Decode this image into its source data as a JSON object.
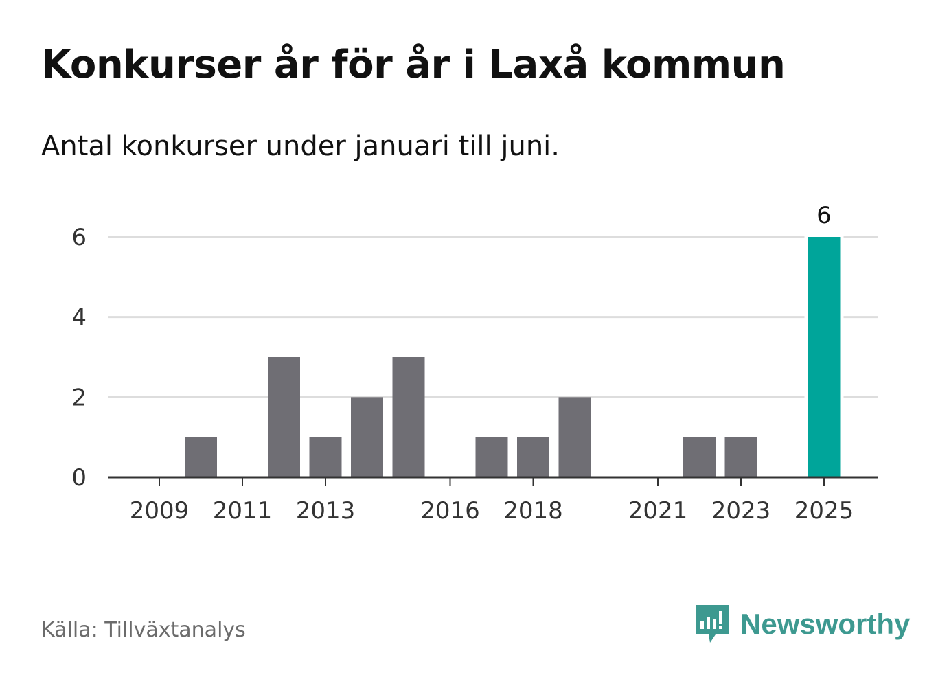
{
  "title": "Konkurser år för år i Laxå kommun",
  "subtitle": "Antal konkurser under januari till juni.",
  "source": "Källa: Tillväxtanalys",
  "brand": {
    "name": "Newsworthy",
    "icon": "newsworthy-logo-icon"
  },
  "colors": {
    "bar": "#6f6e74",
    "highlight": "#00a59a",
    "grid": "#dddddd",
    "axis": "#333333",
    "brand": "#3d9990"
  },
  "chart_data": {
    "type": "bar",
    "title": "Konkurser år för år i Laxå kommun",
    "subtitle": "Antal konkurser under januari till juni.",
    "xlabel": "",
    "ylabel": "",
    "categories": [
      2009,
      2010,
      2011,
      2012,
      2013,
      2014,
      2015,
      2016,
      2017,
      2018,
      2019,
      2020,
      2021,
      2022,
      2023,
      2024,
      2025
    ],
    "values": [
      0,
      1,
      0,
      3,
      1,
      2,
      3,
      0,
      1,
      1,
      2,
      0,
      0,
      1,
      1,
      0,
      6
    ],
    "x_tick_labels": [
      "2009",
      "2011",
      "2013",
      "2016",
      "2018",
      "2021",
      "2023",
      "2025"
    ],
    "y_ticks": [
      0,
      2,
      4,
      6
    ],
    "ylim": [
      0,
      6
    ],
    "grid": true,
    "highlight": {
      "category": 2025,
      "value": 6,
      "label": "6"
    }
  }
}
